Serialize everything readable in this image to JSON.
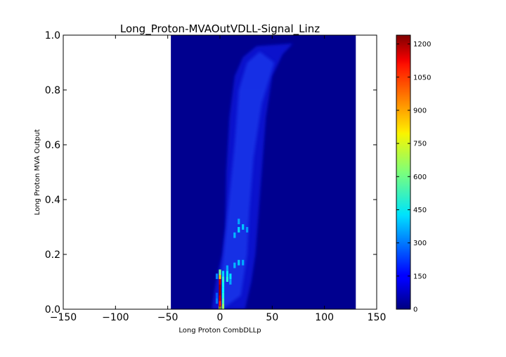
{
  "chart_data": {
    "type": "heatmap",
    "title": "Long_Proton-MVAOutVDLL-Signal_Linz",
    "xlabel": "Long Proton CombDLLp",
    "ylabel": "Long Proton MVA Output",
    "xlim": [
      -150,
      150
    ],
    "ylim": [
      0.0,
      1.0
    ],
    "x_ticks": [
      "−150",
      "−100",
      "−50",
      "0",
      "50",
      "100",
      "150"
    ],
    "x_tick_values": [
      -150,
      -100,
      -50,
      0,
      50,
      100,
      150
    ],
    "y_ticks": [
      "0.0",
      "0.2",
      "0.4",
      "0.6",
      "0.8",
      "1.0"
    ],
    "y_tick_values": [
      0.0,
      0.2,
      0.4,
      0.6,
      0.8,
      1.0
    ],
    "data_region": {
      "x": [
        -47,
        130
      ],
      "y": [
        0.0,
        1.0
      ]
    },
    "colormap": "jet",
    "background_color": "#00008f",
    "colorbar": {
      "range": [
        0,
        1240
      ],
      "ticks": [
        "0",
        "150",
        "300",
        "450",
        "600",
        "750",
        "900",
        "1050",
        "1200"
      ],
      "tick_values": [
        0,
        150,
        300,
        450,
        600,
        750,
        900,
        1050,
        1200
      ]
    },
    "hotspots": [
      {
        "x": 0,
        "y": 0.005,
        "value": 780
      },
      {
        "x": 0,
        "y": 0.02,
        "value": 1050
      },
      {
        "x": 0,
        "y": 0.04,
        "value": 1150
      },
      {
        "x": 0,
        "y": 0.06,
        "value": 1200
      },
      {
        "x": 0,
        "y": 0.08,
        "value": 1200
      },
      {
        "x": 0,
        "y": 0.1,
        "value": 1150
      },
      {
        "x": 0,
        "y": 0.12,
        "value": 850
      },
      {
        "x": 0,
        "y": 0.135,
        "value": 600
      },
      {
        "x": 3,
        "y": 0.01,
        "value": 650
      },
      {
        "x": 3,
        "y": 0.03,
        "value": 560
      },
      {
        "x": 3,
        "y": 0.05,
        "value": 500
      },
      {
        "x": 3,
        "y": 0.07,
        "value": 460
      },
      {
        "x": 3,
        "y": 0.09,
        "value": 480
      },
      {
        "x": 3,
        "y": 0.11,
        "value": 520
      },
      {
        "x": 3,
        "y": 0.13,
        "value": 420
      },
      {
        "x": 7,
        "y": 0.11,
        "value": 500
      },
      {
        "x": 7,
        "y": 0.13,
        "value": 440
      },
      {
        "x": 7,
        "y": 0.15,
        "value": 360
      },
      {
        "x": 10,
        "y": 0.12,
        "value": 430
      },
      {
        "x": 10,
        "y": 0.1,
        "value": 360
      },
      {
        "x": -3,
        "y": 0.03,
        "value": 300
      },
      {
        "x": -3,
        "y": 0.05,
        "value": 260
      },
      {
        "x": -3,
        "y": 0.12,
        "value": 320
      },
      {
        "x": 14,
        "y": 0.16,
        "value": 380
      },
      {
        "x": 18,
        "y": 0.17,
        "value": 400
      },
      {
        "x": 22,
        "y": 0.17,
        "value": 360
      },
      {
        "x": 14,
        "y": 0.27,
        "value": 380
      },
      {
        "x": 18,
        "y": 0.29,
        "value": 420
      },
      {
        "x": 22,
        "y": 0.3,
        "value": 400
      },
      {
        "x": 18,
        "y": 0.32,
        "value": 360
      },
      {
        "x": 26,
        "y": 0.29,
        "value": 340
      }
    ]
  }
}
